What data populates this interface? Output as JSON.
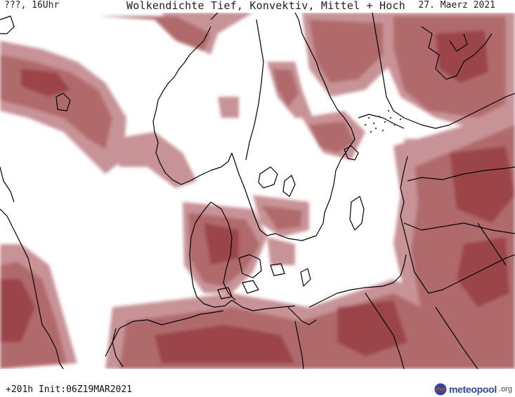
{
  "header": {
    "left_label": "???, 16Uhr",
    "title": "Wolkendichte  Tief, Konvektiv, Mittel + Hoch",
    "date": "27. Maerz 2021"
  },
  "footer": {
    "run_info": "+201h  Init:06Z19MAR2021",
    "logo_name": "meteopool",
    "logo_tld": ".org"
  },
  "colors": {
    "cloud_dark": "#9b4448",
    "cloud_mid": "#b06a6c",
    "cloud_light": "#c89396",
    "coastline": "#000000",
    "background": "#ffffff"
  }
}
